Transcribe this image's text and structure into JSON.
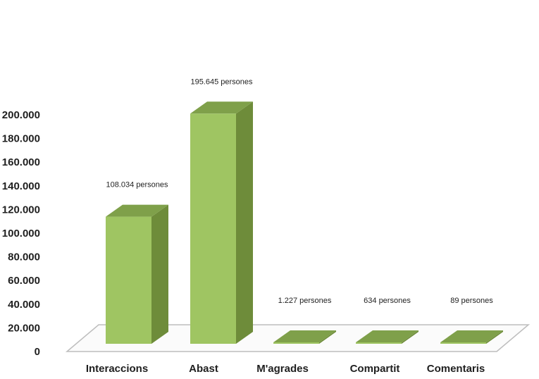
{
  "colors": {
    "bar_front": "#9fc562",
    "bar_side": "#6e8c3a",
    "bar_top": "#7fa04a",
    "floor_fill": "#fbfbfb",
    "floor_stroke": "#bdbdbd",
    "text": "#1f1f1f"
  },
  "chart_data": {
    "type": "bar",
    "title": "",
    "xlabel": "",
    "ylabel": "",
    "categories": [
      "Interaccions",
      "Abast",
      "M'agrades",
      "Compartit",
      "Comentaris"
    ],
    "values": [
      108034,
      195645,
      1227,
      634,
      89
    ],
    "data_labels": [
      "108.034 persones",
      "195.645 persones",
      "1.227 persones",
      "634 persones",
      "89 persones"
    ],
    "ylim": [
      0,
      200000
    ],
    "y_ticks": [
      0,
      20000,
      40000,
      60000,
      80000,
      100000,
      120000,
      140000,
      160000,
      180000,
      200000
    ],
    "y_tick_labels": [
      "0",
      "20.000",
      "40.000",
      "60.000",
      "80.000",
      "100.000",
      "120.000",
      "140.000",
      "160.000",
      "180.000",
      "200.000"
    ],
    "grid": false,
    "legend": "none",
    "style": "3d"
  }
}
